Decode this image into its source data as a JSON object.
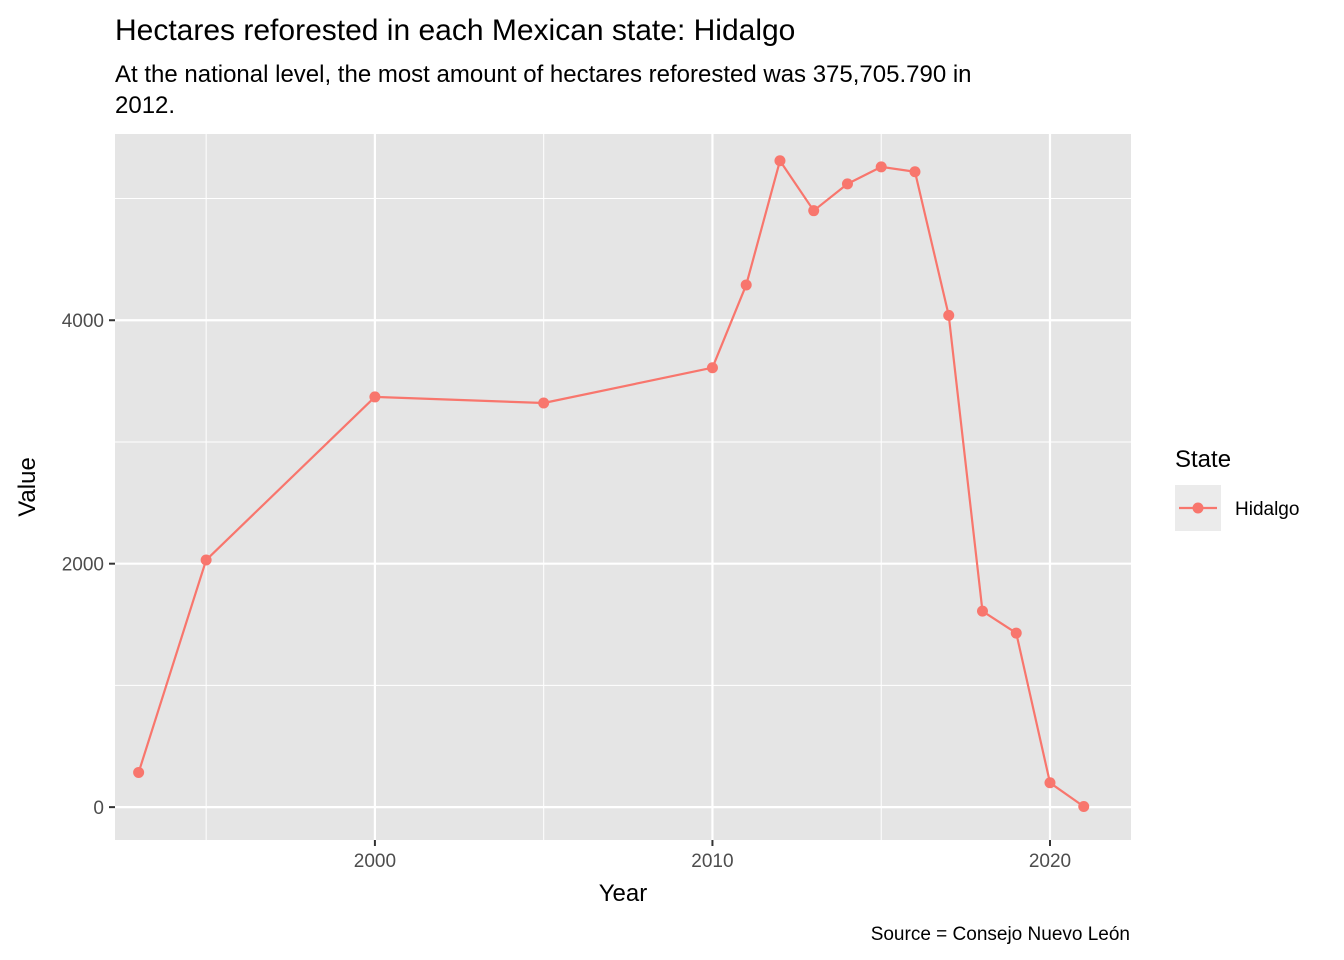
{
  "chart_data": {
    "type": "line",
    "title": "Hectares reforested in each Mexican state: Hidalgo",
    "subtitle_lines": [
      "At the national level, the most amount of hectares reforested was 375,705.790 in",
      "2012."
    ],
    "caption": "Source = Consejo Nuevo León",
    "xlabel": "Year",
    "ylabel": "Value",
    "xlim": [
      1992.3,
      2022.4
    ],
    "ylim": [
      -270,
      5530
    ],
    "x_ticks": [
      2000,
      2010,
      2020
    ],
    "x_minor_ticks": [
      1995,
      2005,
      2015
    ],
    "y_ticks": [
      0,
      2000,
      4000
    ],
    "y_minor_ticks": [
      1000,
      3000,
      5000
    ],
    "grid": true,
    "panel_background": "#e5e5e5",
    "grid_color": "#ffffff",
    "legend": {
      "title": "State",
      "position": "right"
    },
    "series": [
      {
        "name": "Hidalgo",
        "color": "#f8766d",
        "points": [
          {
            "x": 1993,
            "y": 285
          },
          {
            "x": 1995,
            "y": 2030
          },
          {
            "x": 2000,
            "y": 3370
          },
          {
            "x": 2005,
            "y": 3320
          },
          {
            "x": 2010,
            "y": 3610
          },
          {
            "x": 2011,
            "y": 4290
          },
          {
            "x": 2012,
            "y": 5310
          },
          {
            "x": 2013,
            "y": 4900
          },
          {
            "x": 2014,
            "y": 5120
          },
          {
            "x": 2015,
            "y": 5260
          },
          {
            "x": 2016,
            "y": 5220
          },
          {
            "x": 2017,
            "y": 4040
          },
          {
            "x": 2018,
            "y": 1610
          },
          {
            "x": 2019,
            "y": 1430
          },
          {
            "x": 2020,
            "y": 200
          },
          {
            "x": 2021,
            "y": 5
          }
        ]
      }
    ]
  }
}
